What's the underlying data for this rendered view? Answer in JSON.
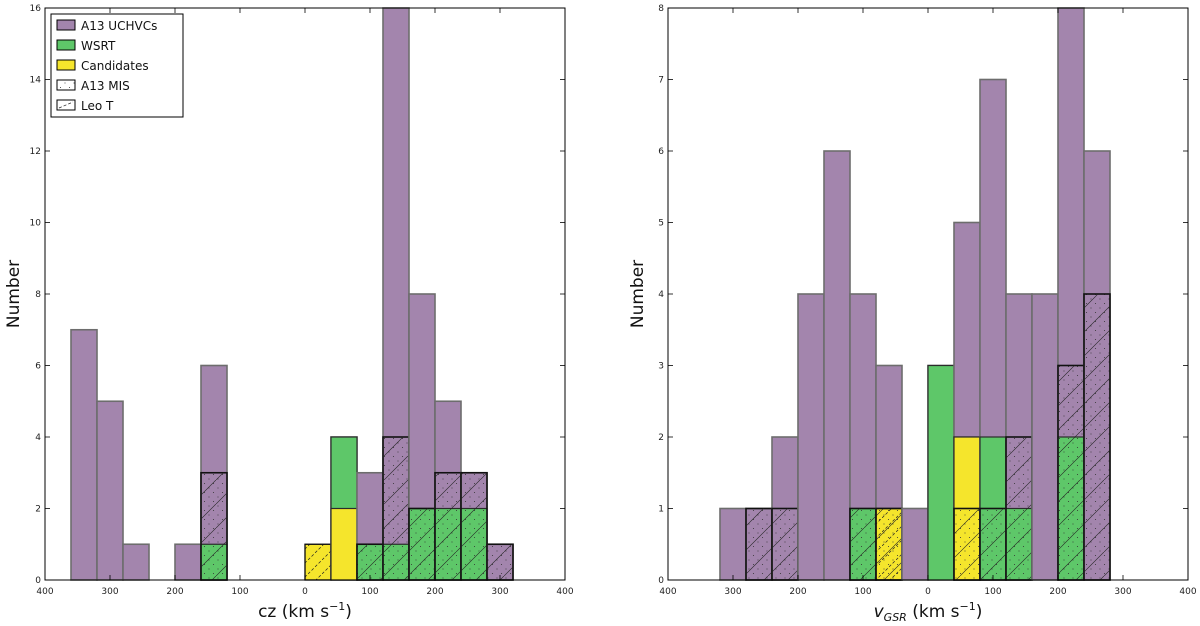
{
  "colors": {
    "uchvc": "#a385ad",
    "wsrt": "#5ec769",
    "candidates": "#f5e52c",
    "edge": "#2b2b2b",
    "uchvc_edge": "#6d6d6d"
  },
  "chart_data": [
    {
      "type": "bar",
      "subtype": "stacked-histogram",
      "xlabel_main": "cz",
      "xlabel_unit": " (km s",
      "xlabel_sup": "−1",
      "xlabel_close": ")",
      "ylabel": "Number",
      "xlim": [
        -400,
        400
      ],
      "ylim": [
        0,
        16
      ],
      "bin_width": 40,
      "xticks": [
        -400,
        -300,
        -200,
        -100,
        0,
        100,
        200,
        300,
        400
      ],
      "xtick_labels": [
        "400",
        "300",
        "200",
        "100",
        "0",
        "100",
        "200",
        "300",
        "400"
      ],
      "yticks": [
        0,
        2,
        4,
        6,
        8,
        10,
        12,
        14,
        16
      ],
      "ytick_labels": [
        "0",
        "2",
        "4",
        "6",
        "8",
        "10",
        "12",
        "14",
        "16"
      ],
      "bin_starts": [
        -360,
        -320,
        -280,
        -200,
        -160,
        0,
        40,
        80,
        120,
        160,
        200,
        240,
        280
      ],
      "series": [
        {
          "name": "A13 UCHVCs",
          "key": "uchvc",
          "values": [
            7,
            5,
            1,
            1,
            6,
            0,
            4,
            3,
            16,
            8,
            5,
            3,
            1
          ]
        },
        {
          "name": "WSRT",
          "key": "wsrt",
          "values": [
            0,
            0,
            0,
            0,
            1,
            0,
            4,
            1,
            1,
            2,
            2,
            2,
            0
          ]
        },
        {
          "name": "Candidates",
          "key": "candidates",
          "values": [
            0,
            0,
            0,
            0,
            0,
            1,
            2,
            0,
            0,
            0,
            0,
            0,
            0
          ]
        },
        {
          "name": "A13 MIS",
          "key": "mis",
          "values": [
            0,
            0,
            0,
            0,
            3,
            0,
            0,
            1,
            4,
            2,
            3,
            3,
            1
          ]
        },
        {
          "name": "Leo T",
          "key": "leot",
          "values": [
            0,
            0,
            0,
            0,
            0,
            1,
            0,
            0,
            0,
            0,
            0,
            0,
            0
          ]
        }
      ],
      "legend": {
        "position": "top-left",
        "entries": [
          "A13 UCHVCs",
          "WSRT",
          "Candidates",
          "A13 MIS",
          "Leo T"
        ]
      }
    },
    {
      "type": "bar",
      "subtype": "stacked-histogram",
      "xlabel_main": "v",
      "xlabel_sub": "GSR",
      "xlabel_unit": " (km s",
      "xlabel_sup": "−1",
      "xlabel_close": ")",
      "ylabel": "Number",
      "xlim": [
        -400,
        400
      ],
      "ylim": [
        0,
        8
      ],
      "bin_width": 40,
      "xticks": [
        -400,
        -300,
        -200,
        -100,
        0,
        100,
        200,
        300,
        400
      ],
      "xtick_labels": [
        "400",
        "300",
        "200",
        "100",
        "0",
        "100",
        "200",
        "300",
        "400"
      ],
      "yticks": [
        0,
        1,
        2,
        3,
        4,
        5,
        6,
        7,
        8
      ],
      "ytick_labels": [
        "0",
        "1",
        "2",
        "3",
        "4",
        "5",
        "6",
        "7",
        "8"
      ],
      "bin_starts": [
        -320,
        -280,
        -240,
        -200,
        -160,
        -120,
        -80,
        -40,
        0,
        40,
        80,
        120,
        160,
        200,
        240
      ],
      "series": [
        {
          "name": "A13 UCHVCs",
          "key": "uchvc",
          "values": [
            1,
            1,
            2,
            4,
            6,
            4,
            3,
            1,
            3,
            5,
            7,
            4,
            4,
            8,
            6
          ]
        },
        {
          "name": "WSRT",
          "key": "wsrt",
          "values": [
            0,
            0,
            0,
            0,
            0,
            1,
            0,
            0,
            3,
            2,
            2,
            1,
            0,
            2,
            0
          ]
        },
        {
          "name": "Candidates",
          "key": "candidates",
          "values": [
            0,
            0,
            0,
            0,
            0,
            0,
            1,
            0,
            0,
            2,
            0,
            0,
            0,
            0,
            0
          ]
        },
        {
          "name": "A13 MIS",
          "key": "mis",
          "values": [
            0,
            1,
            1,
            0,
            0,
            1,
            1,
            0,
            0,
            1,
            1,
            2,
            0,
            3,
            4
          ]
        },
        {
          "name": "Leo T",
          "key": "leot",
          "values": [
            0,
            0,
            0,
            0,
            0,
            0,
            1,
            0,
            0,
            0,
            0,
            0,
            0,
            0,
            0
          ]
        }
      ]
    }
  ]
}
